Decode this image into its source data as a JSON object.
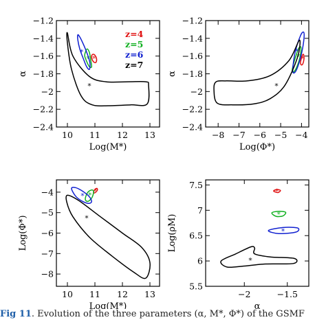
{
  "colors": {
    "z4": "#e01010",
    "z5": "#10b020",
    "z6": "#1020d0",
    "z7": "#000000"
  },
  "legend": [
    "z=4",
    "z=5",
    "z=6",
    "z=7"
  ],
  "caption": {
    "label": "Fig 11",
    "text": ". Evolution of the three parameters (α, M*, Φ*) of the GSMF"
  },
  "chart_data": [
    {
      "type": "contour",
      "panel": "top-left",
      "xlabel": "Log(M*)",
      "ylabel": "α",
      "xlim": [
        9.6,
        13.35
      ],
      "ylim": [
        -2.4,
        -1.2
      ],
      "xticks": [
        10,
        11,
        12,
        13
      ],
      "yticks": [
        -2.4,
        -2.2,
        -2.0,
        -1.8,
        -1.6,
        -1.4,
        -1.2
      ],
      "yticklabels": [
        "−2.4",
        "−2.2",
        "−2",
        "−1.8",
        "−1.6",
        "−1.4",
        "−1.2"
      ],
      "series": [
        {
          "name": "z=4",
          "color_key": "z4",
          "best_fit": [
            10.97,
            -1.62
          ],
          "contour": [
            [
              10.88,
              -1.6
            ],
            [
              10.93,
              -1.58
            ],
            [
              11.0,
              -1.59
            ],
            [
              11.06,
              -1.63
            ],
            [
              11.04,
              -1.67
            ],
            [
              10.97,
              -1.67
            ],
            [
              10.9,
              -1.64
            ]
          ]
        },
        {
          "name": "z=5",
          "color_key": "z5",
          "best_fit": [
            10.75,
            -1.62
          ],
          "contour": [
            [
              10.65,
              -1.56
            ],
            [
              10.72,
              -1.52
            ],
            [
              10.8,
              -1.56
            ],
            [
              10.85,
              -1.65
            ],
            [
              10.88,
              -1.72
            ],
            [
              10.8,
              -1.72
            ],
            [
              10.7,
              -1.66
            ],
            [
              10.63,
              -1.6
            ]
          ]
        },
        {
          "name": "z=6",
          "color_key": "z6",
          "best_fit": [
            10.52,
            -1.55
          ],
          "contour": [
            [
              10.38,
              -1.42
            ],
            [
              10.38,
              -1.36
            ],
            [
              10.46,
              -1.39
            ],
            [
              10.6,
              -1.48
            ],
            [
              10.74,
              -1.59
            ],
            [
              10.82,
              -1.68
            ],
            [
              10.8,
              -1.75
            ],
            [
              10.7,
              -1.72
            ],
            [
              10.58,
              -1.63
            ],
            [
              10.45,
              -1.52
            ]
          ]
        },
        {
          "name": "z=7",
          "color_key": "z7",
          "best_fit": [
            10.8,
            -1.93
          ],
          "contour": [
            [
              10.0,
              -1.34
            ],
            [
              10.2,
              -1.6
            ],
            [
              10.8,
              -1.83
            ],
            [
              11.4,
              -1.89
            ],
            [
              12.2,
              -1.89
            ],
            [
              12.85,
              -1.89
            ],
            [
              12.95,
              -1.93
            ],
            [
              12.9,
              -2.14
            ],
            [
              12.3,
              -2.15
            ],
            [
              11.5,
              -2.16
            ],
            [
              10.9,
              -2.15
            ],
            [
              10.5,
              -2.05
            ],
            [
              10.15,
              -1.75
            ],
            [
              10.0,
              -1.45
            ]
          ]
        }
      ]
    },
    {
      "type": "contour",
      "panel": "top-right",
      "xlabel": "Log(Φ*)",
      "ylabel": "α",
      "xlim": [
        -8.6,
        -3.65
      ],
      "ylim": [
        -2.4,
        -1.2
      ],
      "xticks": [
        -8,
        -7,
        -6,
        -5,
        -4
      ],
      "xticklabels": [
        "−8",
        "−7",
        "−6",
        "−5",
        "−4"
      ],
      "yticks": [
        -2.4,
        -2.2,
        -2.0,
        -1.8,
        -1.6,
        -1.4,
        -1.2
      ],
      "yticklabels": [
        "−2.4",
        "−2.2",
        "−2",
        "−1.8",
        "−1.6",
        "−1.4",
        "−1.2"
      ],
      "series": [
        {
          "name": "z=4",
          "color_key": "z4",
          "best_fit": [
            -3.95,
            -1.62
          ],
          "contour": [
            [
              -4.05,
              -1.68
            ],
            [
              -4.0,
              -1.62
            ],
            [
              -3.93,
              -1.58
            ],
            [
              -3.88,
              -1.6
            ],
            [
              -3.9,
              -1.66
            ],
            [
              -3.98,
              -1.7
            ]
          ]
        },
        {
          "name": "z=5",
          "color_key": "z5",
          "best_fit": [
            -4.15,
            -1.6
          ],
          "contour": [
            [
              -4.45,
              -1.76
            ],
            [
              -4.35,
              -1.66
            ],
            [
              -4.15,
              -1.52
            ],
            [
              -4.03,
              -1.5
            ],
            [
              -4.06,
              -1.6
            ],
            [
              -4.22,
              -1.72
            ],
            [
              -4.38,
              -1.78
            ]
          ]
        },
        {
          "name": "z=6",
          "color_key": "z6",
          "best_fit": [
            -4.22,
            -1.54
          ],
          "contour": [
            [
              -4.42,
              -1.75
            ],
            [
              -4.3,
              -1.55
            ],
            [
              -4.05,
              -1.37
            ],
            [
              -3.9,
              -1.33
            ],
            [
              -3.88,
              -1.4
            ],
            [
              -3.98,
              -1.55
            ],
            [
              -4.18,
              -1.72
            ],
            [
              -4.35,
              -1.79
            ]
          ]
        },
        {
          "name": "z=7",
          "color_key": "z7",
          "best_fit": [
            -5.2,
            -1.93
          ],
          "contour": [
            [
              -4.1,
              -1.42
            ],
            [
              -4.6,
              -1.65
            ],
            [
              -5.5,
              -1.82
            ],
            [
              -6.6,
              -1.88
            ],
            [
              -7.6,
              -1.88
            ],
            [
              -8.1,
              -1.89
            ],
            [
              -8.2,
              -1.98
            ],
            [
              -8.05,
              -2.13
            ],
            [
              -7.3,
              -2.15
            ],
            [
              -6.3,
              -2.14
            ],
            [
              -5.5,
              -2.08
            ],
            [
              -4.8,
              -1.93
            ],
            [
              -4.2,
              -1.62
            ]
          ]
        }
      ]
    },
    {
      "type": "contour",
      "panel": "bottom-left",
      "xlabel": "Log(M*)",
      "ylabel": "Log(Φ*)",
      "xlim": [
        9.6,
        13.35
      ],
      "ylim": [
        -8.6,
        -3.4
      ],
      "xticks": [
        10,
        11,
        12,
        13
      ],
      "yticks": [
        -8,
        -7,
        -6,
        -5,
        -4
      ],
      "yticklabels": [
        "−8",
        "−7",
        "−6",
        "−5",
        "−4"
      ],
      "series": [
        {
          "name": "z=4",
          "color_key": "z4",
          "best_fit": [
            11.02,
            -3.92
          ],
          "contour": [
            [
              10.95,
              -4.0
            ],
            [
              11.02,
              -3.85
            ],
            [
              11.08,
              -3.82
            ],
            [
              11.09,
              -3.9
            ],
            [
              11.03,
              -4.0
            ],
            [
              10.97,
              -4.04
            ]
          ]
        },
        {
          "name": "z=5",
          "color_key": "z5",
          "best_fit": [
            10.82,
            -4.12
          ],
          "contour": [
            [
              10.65,
              -4.35
            ],
            [
              10.72,
              -4.05
            ],
            [
              10.86,
              -3.9
            ],
            [
              10.95,
              -3.95
            ],
            [
              10.9,
              -4.25
            ],
            [
              10.75,
              -4.45
            ]
          ]
        },
        {
          "name": "z=6",
          "color_key": "z6",
          "best_fit": [
            10.55,
            -4.15
          ],
          "contour": [
            [
              10.15,
              -3.82
            ],
            [
              10.3,
              -3.78
            ],
            [
              10.55,
              -3.95
            ],
            [
              10.78,
              -4.2
            ],
            [
              10.88,
              -4.45
            ],
            [
              10.78,
              -4.55
            ],
            [
              10.55,
              -4.45
            ],
            [
              10.3,
              -4.2
            ]
          ]
        },
        {
          "name": "z=7",
          "color_key": "z7",
          "best_fit": [
            10.7,
            -5.25
          ],
          "contour": [
            [
              10.0,
              -4.15
            ],
            [
              10.4,
              -4.4
            ],
            [
              11.2,
              -5.2
            ],
            [
              12.0,
              -6.0
            ],
            [
              12.7,
              -6.7
            ],
            [
              13.0,
              -7.45
            ],
            [
              12.85,
              -8.2
            ],
            [
              12.4,
              -7.9
            ],
            [
              11.6,
              -7.1
            ],
            [
              10.8,
              -6.2
            ],
            [
              10.2,
              -5.2
            ],
            [
              9.98,
              -4.5
            ]
          ]
        }
      ]
    },
    {
      "type": "contour",
      "panel": "bottom-right",
      "xlabel": "α",
      "ylabel": "Log(ρM)",
      "xlim": [
        -2.45,
        -1.25
      ],
      "ylim": [
        5.5,
        7.6
      ],
      "xticks": [
        -2,
        -1.5
      ],
      "xticklabels": [
        "−2",
        "−1.5"
      ],
      "yticks": [
        5.5,
        6,
        6.5,
        7,
        7.5
      ],
      "series": [
        {
          "name": "z=4",
          "color_key": "z4",
          "best_fit": [
            -1.62,
            7.38
          ],
          "contour": [
            [
              -1.66,
              7.38
            ],
            [
              -1.62,
              7.41
            ],
            [
              -1.58,
              7.39
            ],
            [
              -1.61,
              7.35
            ]
          ]
        },
        {
          "name": "z=5",
          "color_key": "z5",
          "best_fit": [
            -1.6,
            6.93
          ],
          "contour": [
            [
              -1.68,
              6.95
            ],
            [
              -1.6,
              6.98
            ],
            [
              -1.52,
              6.96
            ],
            [
              -1.55,
              6.89
            ],
            [
              -1.63,
              6.88
            ]
          ]
        },
        {
          "name": "z=6",
          "color_key": "z6",
          "best_fit": [
            -1.55,
            6.6
          ],
          "contour": [
            [
              -1.72,
              6.6
            ],
            [
              -1.55,
              6.66
            ],
            [
              -1.38,
              6.65
            ],
            [
              -1.4,
              6.57
            ],
            [
              -1.6,
              6.54
            ]
          ]
        },
        {
          "name": "z=7",
          "color_key": "z7",
          "best_fit": [
            -1.93,
            6.02
          ],
          "contour": [
            [
              -2.27,
              6.0
            ],
            [
              -2.1,
              6.14
            ],
            [
              -1.92,
              6.28
            ],
            [
              -1.88,
              6.25
            ],
            [
              -1.88,
              6.14
            ],
            [
              -1.7,
              6.08
            ],
            [
              -1.42,
              6.05
            ],
            [
              -1.43,
              5.95
            ],
            [
              -1.75,
              5.94
            ],
            [
              -2.0,
              5.9
            ],
            [
              -2.2,
              5.88
            ]
          ]
        }
      ]
    }
  ]
}
